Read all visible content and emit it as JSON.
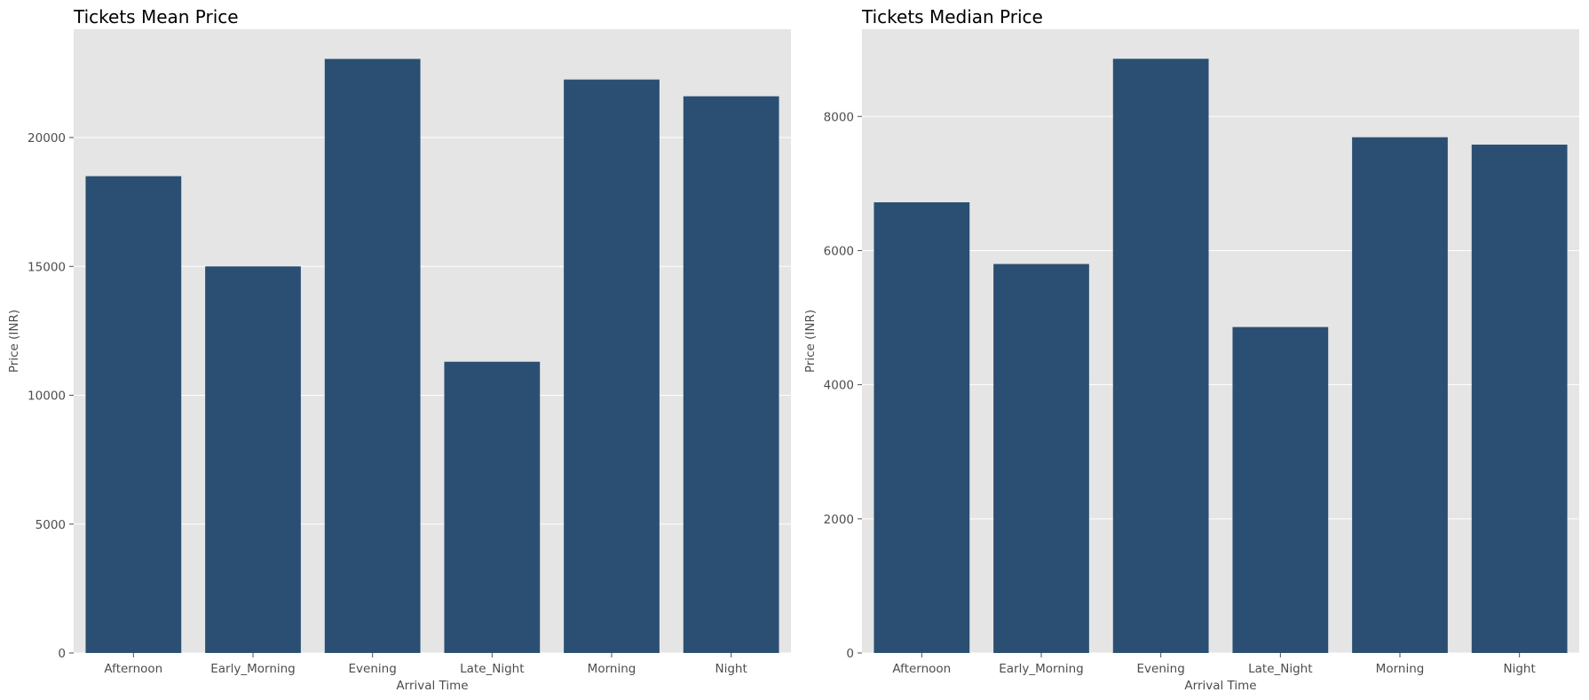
{
  "colors": {
    "bar": "#2a4f72",
    "plot_background": "#e5e5e5",
    "grid": "#ffffff"
  },
  "chart_data": [
    {
      "type": "bar",
      "title": "Tickets Mean Price",
      "xlabel": "Arrival Time",
      "ylabel": "Price (INR)",
      "categories": [
        "Afternoon",
        "Early_Morning",
        "Evening",
        "Late_Night",
        "Morning",
        "Night"
      ],
      "values": [
        18500,
        15000,
        23050,
        11300,
        22250,
        21600
      ],
      "ylim": [
        0,
        24200
      ],
      "yticks": [
        0,
        5000,
        10000,
        15000,
        20000
      ],
      "ytick_labels": [
        "0",
        "5000",
        "10000",
        "15000",
        "20000"
      ],
      "grid": true,
      "legend": null
    },
    {
      "type": "bar",
      "title": "Tickets Median Price",
      "xlabel": "Arrival Time",
      "ylabel": "Price (INR)",
      "categories": [
        "Afternoon",
        "Early_Morning",
        "Evening",
        "Late_Night",
        "Morning",
        "Night"
      ],
      "values": [
        6720,
        5800,
        8860,
        4860,
        7690,
        7580
      ],
      "ylim": [
        0,
        9300
      ],
      "yticks": [
        0,
        2000,
        4000,
        6000,
        8000
      ],
      "ytick_labels": [
        "0",
        "2000",
        "4000",
        "6000",
        "8000"
      ],
      "grid": true,
      "legend": null
    }
  ]
}
